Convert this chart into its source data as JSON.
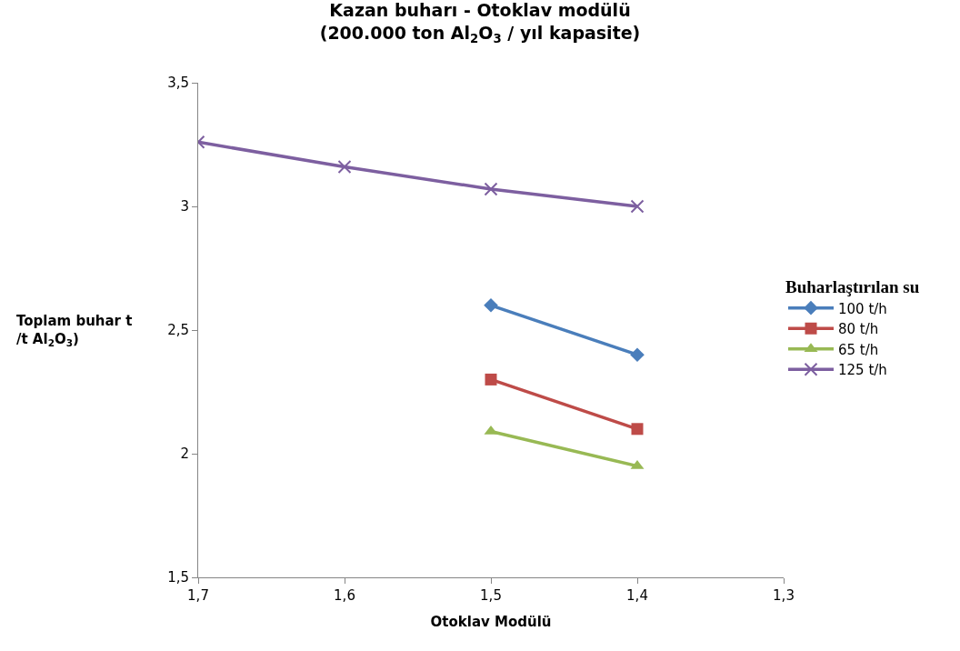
{
  "chart_data": {
    "type": "line",
    "title": "Kazan buharı - Otoklav modülü\n(200.000 ton Al$_{2}$O$_{3}$ / yıl kapasite)",
    "xlabel": "Otoklav Modülü",
    "ylabel": "Toplam buhar t\n/t Al$_{2}$O$_{3}$)",
    "legend_title": "Buharlaştırılan su",
    "legend": "right",
    "xlim": [
      1.7,
      1.3
    ],
    "xticks": [
      {
        "value": 1.7,
        "label": "1,7"
      },
      {
        "value": 1.6,
        "label": "1,6"
      },
      {
        "value": 1.5,
        "label": "1,5"
      },
      {
        "value": 1.4,
        "label": "1,4"
      },
      {
        "value": 1.3,
        "label": "1,3"
      }
    ],
    "ylim": [
      1.5,
      3.5
    ],
    "yticks": [
      {
        "value": 1.5,
        "label": "1,5"
      },
      2,
      {
        "value": 2.5,
        "label": "2,5"
      },
      3,
      {
        "value": 3.5,
        "label": "3,5"
      }
    ],
    "series": [
      {
        "name": "100 t/h",
        "color": "#4a7ebb",
        "marker": "diamond",
        "x": [
          1.5,
          1.4
        ],
        "values": [
          2.6,
          2.4
        ]
      },
      {
        "name": "80 t/h",
        "color": "#be4b48",
        "marker": "square",
        "x": [
          1.5,
          1.4
        ],
        "values": [
          2.3,
          2.1
        ]
      },
      {
        "name": "65 t/h",
        "color": "#98b954",
        "marker": "triangle",
        "x": [
          1.5,
          1.4
        ],
        "values": [
          2.09,
          1.95
        ]
      },
      {
        "name": "125 t/h",
        "color": "#7d5fa0",
        "marker": "cross",
        "x": [
          1.7,
          1.6,
          1.5,
          1.4
        ],
        "values": [
          3.26,
          3.16,
          3.07,
          3.0
        ]
      }
    ]
  }
}
